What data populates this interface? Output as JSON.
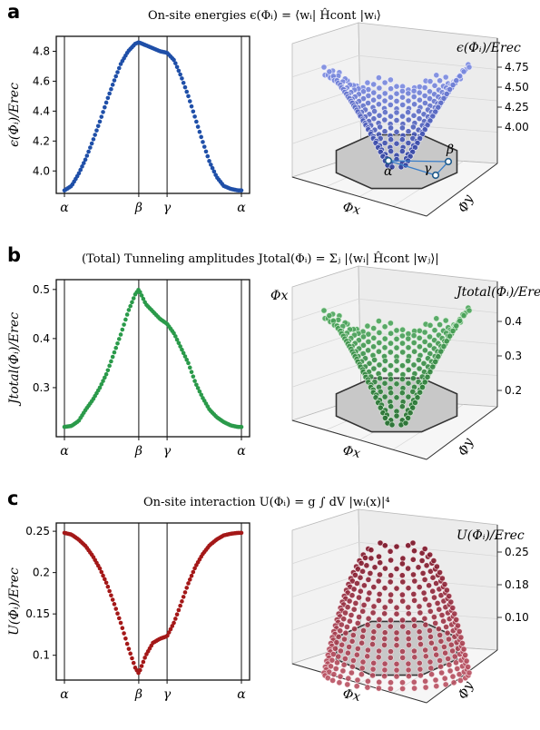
{
  "chart_data": [
    {
      "type": "scatter",
      "panel_label": "a",
      "title": "On-site energies   ϵ(Φᵢ) = ⟨wᵢ| Ĥcont |wᵢ⟩",
      "xlabel": "",
      "ylabel": "ϵ(Φᵢ)/Erec",
      "ylim": [
        3.85,
        4.9
      ],
      "yticks": [
        "4.0",
        "4.2",
        "4.4",
        "4.6",
        "4.8"
      ],
      "ytick_values": [
        4.0,
        4.2,
        4.4,
        4.6,
        4.8
      ],
      "categories": [
        "α",
        "β",
        "γ",
        "α"
      ],
      "category_positions": [
        0.0,
        0.42,
        0.58,
        1.0
      ],
      "color": "#1f4fa8",
      "x": [
        0.0,
        0.04,
        0.08,
        0.12,
        0.16,
        0.2,
        0.24,
        0.28,
        0.32,
        0.36,
        0.4,
        0.42,
        0.46,
        0.5,
        0.54,
        0.58,
        0.62,
        0.66,
        0.7,
        0.74,
        0.78,
        0.82,
        0.86,
        0.9,
        0.94,
        0.98,
        1.0
      ],
      "y": [
        3.87,
        3.9,
        3.98,
        4.08,
        4.2,
        4.33,
        4.47,
        4.6,
        4.72,
        4.8,
        4.85,
        4.86,
        4.84,
        4.82,
        4.8,
        4.79,
        4.74,
        4.63,
        4.5,
        4.35,
        4.2,
        4.06,
        3.96,
        3.9,
        3.88,
        3.87,
        3.87
      ],
      "surface": {
        "zlabel": "ϵ(Φᵢ)/Erec",
        "zticks": [
          "4.75",
          "4.50",
          "4.25",
          "4.00"
        ],
        "xlabel": "Φx",
        "ylabel": "Φy",
        "path_labels": [
          "α",
          "β",
          "γ"
        ],
        "colors": [
          "#2a3b9c",
          "#7a8ae0",
          "#eeeefc"
        ]
      }
    },
    {
      "type": "scatter",
      "panel_label": "b",
      "title": "(Total) Tunneling amplitudes   Jtotal(Φᵢ) = Σⱼ |⟨wᵢ| Ĥcont |wⱼ⟩|",
      "title_subscript": "j",
      "xlabel": "",
      "ylabel": "Jtotal(Φᵢ)/Erec",
      "ylim": [
        0.2,
        0.52
      ],
      "yticks": [
        "0.3",
        "0.4",
        "0.5"
      ],
      "ytick_values": [
        0.3,
        0.4,
        0.5
      ],
      "categories": [
        "α",
        "β",
        "γ",
        "α"
      ],
      "category_positions": [
        0.0,
        0.42,
        0.58,
        1.0
      ],
      "color": "#2a9a4a",
      "x": [
        0.0,
        0.04,
        0.08,
        0.12,
        0.16,
        0.2,
        0.24,
        0.28,
        0.32,
        0.36,
        0.4,
        0.42,
        0.46,
        0.5,
        0.54,
        0.58,
        0.62,
        0.66,
        0.7,
        0.74,
        0.78,
        0.82,
        0.86,
        0.9,
        0.94,
        0.98,
        1.0
      ],
      "y": [
        0.22,
        0.222,
        0.232,
        0.255,
        0.275,
        0.3,
        0.33,
        0.37,
        0.41,
        0.455,
        0.49,
        0.5,
        0.47,
        0.455,
        0.44,
        0.43,
        0.41,
        0.38,
        0.35,
        0.31,
        0.28,
        0.255,
        0.24,
        0.23,
        0.223,
        0.22,
        0.22
      ],
      "surface": {
        "zlabel": "Jtotal(Φᵢ)/Erec",
        "zticks": [
          "0.4",
          "0.3",
          "0.2"
        ],
        "xlabel": "Φx",
        "ylabel": "Φy",
        "extra_label": "Φx",
        "colors": [
          "#1f6b2a",
          "#4aa45a",
          "#d8efd8"
        ]
      }
    },
    {
      "type": "scatter",
      "panel_label": "c",
      "title": "On-site interaction   U(Φᵢ) = g ∫ dV |wᵢ(x)|⁴",
      "xlabel": "",
      "ylabel": "U(Φᵢ)/Erec",
      "ylim": [
        0.07,
        0.26
      ],
      "yticks": [
        "0.1",
        "0.15",
        "0.2",
        "0.25"
      ],
      "ytick_values": [
        0.1,
        0.15,
        0.2,
        0.25
      ],
      "categories": [
        "α",
        "β",
        "γ",
        "α"
      ],
      "category_positions": [
        0.0,
        0.42,
        0.58,
        1.0
      ],
      "color": "#a41818",
      "x": [
        0.0,
        0.04,
        0.08,
        0.12,
        0.16,
        0.2,
        0.24,
        0.28,
        0.32,
        0.36,
        0.4,
        0.42,
        0.46,
        0.5,
        0.54,
        0.58,
        0.62,
        0.66,
        0.7,
        0.74,
        0.78,
        0.82,
        0.86,
        0.9,
        0.94,
        0.98,
        1.0
      ],
      "y": [
        0.248,
        0.246,
        0.24,
        0.232,
        0.22,
        0.205,
        0.186,
        0.163,
        0.138,
        0.11,
        0.085,
        0.078,
        0.1,
        0.115,
        0.12,
        0.123,
        0.14,
        0.163,
        0.187,
        0.207,
        0.222,
        0.233,
        0.24,
        0.245,
        0.247,
        0.248,
        0.248
      ],
      "surface": {
        "zlabel": "U(Φᵢ)/Erec",
        "zticks": [
          "0.25",
          "0.18",
          "0.10"
        ],
        "xlabel": "Φx",
        "ylabel": "Φy",
        "colors": [
          "#7a1024",
          "#b85060",
          "#f6e0e4"
        ]
      }
    }
  ]
}
